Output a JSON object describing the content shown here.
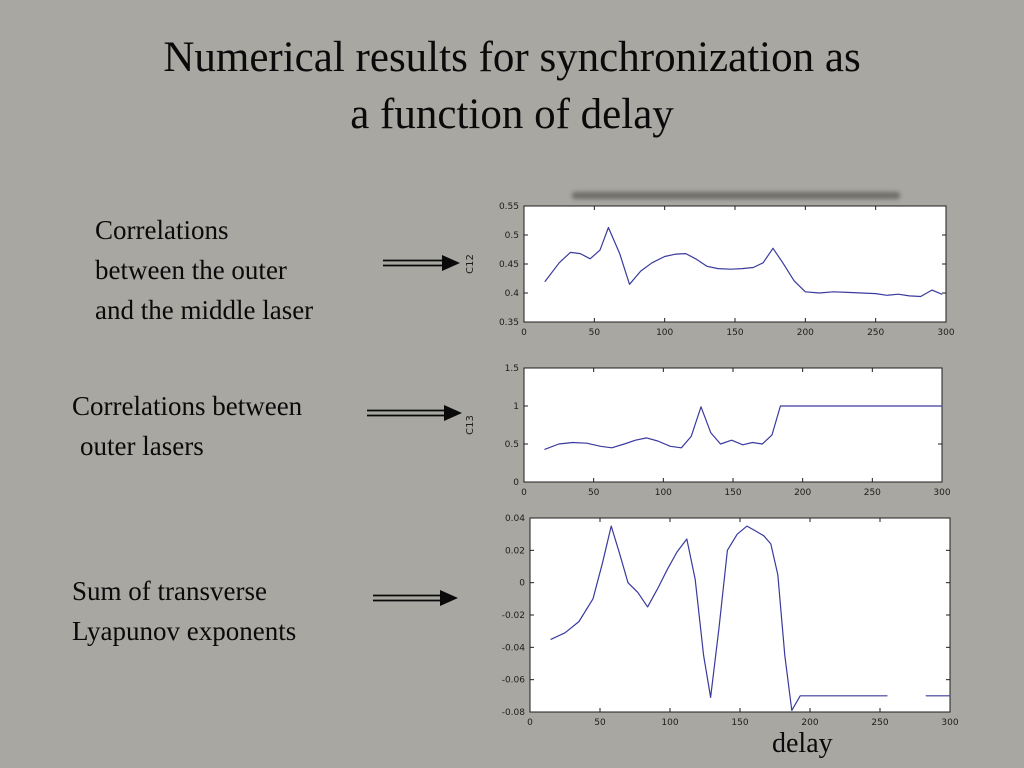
{
  "slide": {
    "title": {
      "line1": "Numerical results for synchronization as",
      "line2": "a function of delay"
    },
    "annotations": [
      {
        "lines": [
          "Correlations",
          "between the outer",
          "and the middle laser"
        ]
      },
      {
        "lines": [
          "Correlations between",
          "outer lasers"
        ]
      },
      {
        "lines": [
          "Sum of transverse",
          "Lyapunov exponents"
        ]
      }
    ],
    "xlabel_bottom": "delay"
  },
  "chart_data": [
    {
      "type": "line",
      "title": "",
      "ylabel": "C12",
      "xlabel": "",
      "xlim": [
        0,
        300
      ],
      "ylim": [
        0.35,
        0.55
      ],
      "xticks": [
        0,
        50,
        100,
        150,
        200,
        250,
        300
      ],
      "yticks": [
        0.35,
        0.4,
        0.45,
        0.5,
        0.55
      ],
      "grid": false,
      "legend": "none",
      "line_color": "#3a3a9e",
      "x": [
        15,
        25,
        33,
        40,
        47,
        54,
        60,
        68,
        75,
        83,
        91,
        100,
        108,
        115,
        122,
        130,
        138,
        147,
        155,
        163,
        170,
        177,
        184,
        192,
        200,
        210,
        220,
        230,
        240,
        250,
        258,
        266,
        274,
        282,
        290,
        297
      ],
      "y": [
        0.42,
        0.452,
        0.47,
        0.468,
        0.459,
        0.474,
        0.513,
        0.468,
        0.415,
        0.438,
        0.452,
        0.463,
        0.467,
        0.468,
        0.459,
        0.446,
        0.442,
        0.441,
        0.442,
        0.444,
        0.452,
        0.477,
        0.452,
        0.421,
        0.402,
        0.4,
        0.402,
        0.401,
        0.4,
        0.399,
        0.396,
        0.398,
        0.395,
        0.394,
        0.405,
        0.398
      ]
    },
    {
      "type": "line",
      "title": "",
      "ylabel": "C13",
      "xlabel": "",
      "xlim": [
        0,
        300
      ],
      "ylim": [
        0,
        1.5
      ],
      "xticks": [
        0,
        50,
        100,
        150,
        200,
        250,
        300
      ],
      "yticks": [
        0,
        0.5,
        1,
        1.5
      ],
      "grid": false,
      "legend": "none",
      "line_color": "#3a3a9e",
      "x": [
        15,
        25,
        35,
        45,
        55,
        63,
        72,
        80,
        88,
        96,
        105,
        113,
        120,
        127,
        134,
        141,
        149,
        157,
        164,
        171,
        178,
        184,
        190,
        200,
        215,
        230,
        250,
        270,
        285,
        300
      ],
      "y": [
        0.43,
        0.5,
        0.52,
        0.51,
        0.47,
        0.45,
        0.5,
        0.55,
        0.58,
        0.54,
        0.47,
        0.45,
        0.6,
        0.99,
        0.65,
        0.5,
        0.55,
        0.49,
        0.52,
        0.5,
        0.62,
        1.0,
        1.0,
        1.0,
        1.0,
        1.0,
        1.0,
        1.0,
        1.0,
        1.0
      ]
    },
    {
      "type": "line",
      "title": "",
      "ylabel": "",
      "xlabel": "delay",
      "xlim": [
        0,
        300
      ],
      "ylim": [
        -0.08,
        0.04
      ],
      "xticks": [
        0,
        50,
        100,
        150,
        200,
        250,
        300
      ],
      "yticks": [
        -0.08,
        -0.06,
        -0.04,
        -0.02,
        0,
        0.02,
        0.04
      ],
      "grid": false,
      "legend": "none",
      "line_color": "#3a3a9e",
      "x": [
        15,
        25,
        35,
        45,
        52,
        58,
        64,
        70,
        77,
        84,
        91,
        98,
        105,
        112,
        118,
        124,
        129,
        135,
        141,
        148,
        155,
        161,
        167,
        172,
        177,
        182,
        187,
        193,
        200,
        215,
        230,
        245,
        255,
        270,
        283,
        292,
        300
      ],
      "y": [
        -0.035,
        -0.031,
        -0.024,
        -0.01,
        0.013,
        0.035,
        0.018,
        0.0,
        -0.006,
        -0.015,
        -0.004,
        0.008,
        0.019,
        0.027,
        0.002,
        -0.045,
        -0.071,
        -0.028,
        0.02,
        0.03,
        0.035,
        0.032,
        0.029,
        0.024,
        0.005,
        -0.045,
        -0.079,
        -0.07,
        -0.07,
        -0.07,
        -0.07,
        -0.07,
        -0.07,
        null,
        -0.07,
        -0.07,
        -0.07
      ]
    }
  ]
}
